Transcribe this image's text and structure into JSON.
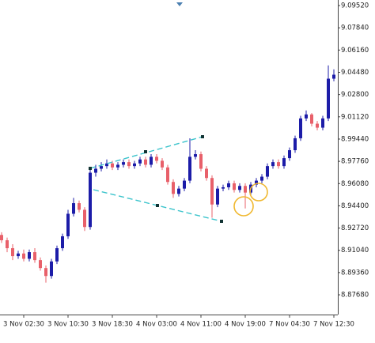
{
  "chart_data": {
    "type": "candlestick",
    "categories": [
      null,
      null,
      null,
      null,
      "3 Nov 02:30",
      null,
      null,
      null,
      null,
      null,
      null,
      null,
      "3 Nov 10:30",
      null,
      null,
      null,
      null,
      null,
      null,
      null,
      "3 Nov 18:30",
      null,
      null,
      null,
      null,
      null,
      null,
      null,
      "4 Nov 03:00",
      null,
      null,
      null,
      null,
      null,
      null,
      null,
      "4 Nov 11:00",
      null,
      null,
      null,
      null,
      null,
      null,
      null,
      "4 Nov 19:00",
      null,
      null,
      null,
      null,
      null,
      null,
      null,
      "7 Nov 04:30",
      null,
      null,
      null,
      null,
      null,
      null,
      null,
      "7 Nov 12:30"
    ],
    "open": [
      8.922,
      8.918,
      8.912,
      8.906,
      8.908,
      8.904,
      8.909,
      8.903,
      8.897,
      8.891,
      8.902,
      8.912,
      8.921,
      8.938,
      8.946,
      8.941,
      8.928,
      8.969,
      8.972,
      8.974,
      8.976,
      8.973,
      8.975,
      8.977,
      8.974,
      8.976,
      8.979,
      8.975,
      8.981,
      8.978,
      8.973,
      8.962,
      8.953,
      8.957,
      8.963,
      8.981,
      8.983,
      8.972,
      8.965,
      8.945,
      8.957,
      8.958,
      8.961,
      8.956,
      8.959,
      8.954,
      8.96,
      8.963,
      8.966,
      8.974,
      8.977,
      8.974,
      8.98,
      8.986,
      8.995,
      9.01,
      9.013,
      9.006,
      9.003,
      9.01,
      9.04
    ],
    "high": [
      8.924,
      8.92,
      8.915,
      8.91,
      8.911,
      8.911,
      8.912,
      8.905,
      8.899,
      8.904,
      8.914,
      8.923,
      8.941,
      8.95,
      8.948,
      8.943,
      8.972,
      8.975,
      8.977,
      8.979,
      8.978,
      8.977,
      8.979,
      8.979,
      8.978,
      8.981,
      8.981,
      8.983,
      8.983,
      8.98,
      8.975,
      8.964,
      8.959,
      8.965,
      8.995,
      8.986,
      8.985,
      8.974,
      8.967,
      8.959,
      8.96,
      8.963,
      8.963,
      8.961,
      8.961,
      8.962,
      8.965,
      8.968,
      8.976,
      8.979,
      8.979,
      8.982,
      8.988,
      8.997,
      9.012,
      9.016,
      9.014,
      9.008,
      9.012,
      9.05,
      9.047
    ],
    "low": [
      8.916,
      8.909,
      8.903,
      8.904,
      8.902,
      8.902,
      8.901,
      8.895,
      8.886,
      8.889,
      8.9,
      8.91,
      8.919,
      8.936,
      8.939,
      8.925,
      8.926,
      8.966,
      8.97,
      8.972,
      8.971,
      8.971,
      8.973,
      8.972,
      8.972,
      8.974,
      8.973,
      8.973,
      8.976,
      8.971,
      8.96,
      8.95,
      8.951,
      8.955,
      8.961,
      8.979,
      8.97,
      8.963,
      8.935,
      8.943,
      8.955,
      8.956,
      8.954,
      8.954,
      8.942,
      8.952,
      8.958,
      8.961,
      8.964,
      8.972,
      8.972,
      8.972,
      8.978,
      8.984,
      8.993,
      9.008,
      9.004,
      9.001,
      9.001,
      9.008,
      9.038
    ],
    "close": [
      8.918,
      8.912,
      8.906,
      8.908,
      8.904,
      8.909,
      8.903,
      8.897,
      8.891,
      8.902,
      8.912,
      8.921,
      8.938,
      8.946,
      8.941,
      8.928,
      8.969,
      8.972,
      8.974,
      8.976,
      8.973,
      8.975,
      8.977,
      8.974,
      8.976,
      8.979,
      8.975,
      8.981,
      8.978,
      8.973,
      8.962,
      8.953,
      8.957,
      8.963,
      8.981,
      8.983,
      8.972,
      8.965,
      8.945,
      8.957,
      8.958,
      8.961,
      8.956,
      8.959,
      8.954,
      8.96,
      8.963,
      8.966,
      8.974,
      8.977,
      8.974,
      8.98,
      8.986,
      8.995,
      9.01,
      9.013,
      9.006,
      9.003,
      9.01,
      9.04,
      9.043
    ],
    "up_color": "#1c1ca8",
    "down_color": "#e8606a",
    "ylim": [
      8.8619,
      9.0994
    ],
    "yticks": [
      {
        "value": 8.8768,
        "label": "8.87680"
      },
      {
        "value": 8.8936,
        "label": "8.89360"
      },
      {
        "value": 8.9104,
        "label": "8.91040"
      },
      {
        "value": 8.9272,
        "label": "8.92720"
      },
      {
        "value": 8.944,
        "label": "8.94400"
      },
      {
        "value": 8.9608,
        "label": "8.96080"
      },
      {
        "value": 8.9776,
        "label": "8.97760"
      },
      {
        "value": 8.9944,
        "label": "8.99440"
      },
      {
        "value": 9.0112,
        "label": "9.01120"
      },
      {
        "value": 9.028,
        "label": "9.02800"
      },
      {
        "value": 9.0448,
        "label": "9.04480"
      },
      {
        "value": 9.0616,
        "label": "9.06160"
      },
      {
        "value": 9.0784,
        "label": "9.07840"
      },
      {
        "value": 9.0952,
        "label": "9.09520"
      }
    ],
    "grid": false
  }
}
